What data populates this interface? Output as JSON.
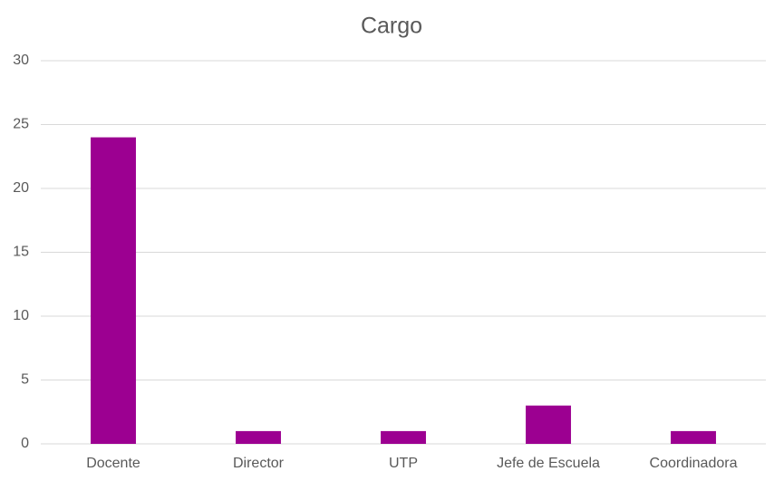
{
  "chart_data": {
    "type": "bar",
    "title": "Cargo",
    "categories": [
      "Docente",
      "Director",
      "UTP",
      "Jefe de Escuela",
      "Coordinadora"
    ],
    "values": [
      24,
      1,
      1,
      3,
      1
    ],
    "color": "#9c0091",
    "ylim": [
      0,
      30
    ],
    "yticks": [
      0,
      5,
      10,
      15,
      20,
      25,
      30
    ],
    "grid": true
  }
}
